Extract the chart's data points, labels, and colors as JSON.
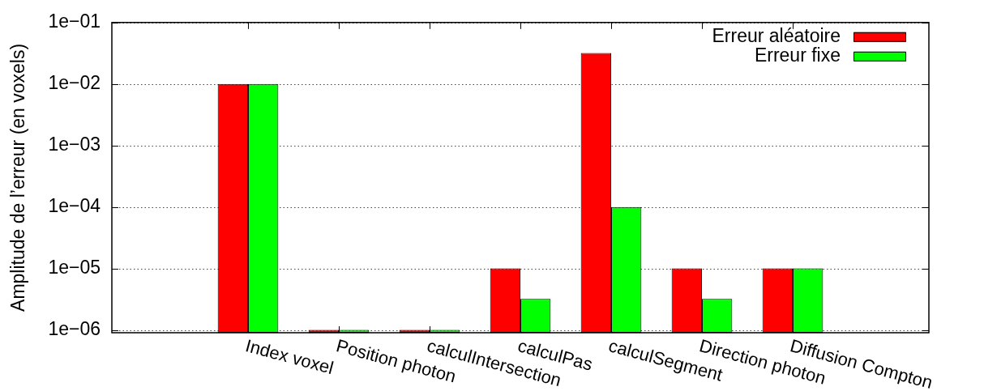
{
  "chart_data": {
    "type": "bar",
    "ylabel": "Amplitude de l’erreur (en voxels)",
    "categories": [
      "Index voxel",
      "Position photon",
      "calculIntersection",
      "calculPas",
      "calculSegment",
      "Direction photon",
      "Diffusion Compton"
    ],
    "series": [
      {
        "name": "Erreur aléatoire",
        "color": "#ff0000",
        "values": [
          0.01,
          1e-06,
          1e-06,
          1e-05,
          0.032,
          1e-05,
          1e-05
        ]
      },
      {
        "name": "Erreur fixe",
        "color": "#00ff00",
        "values": [
          0.01,
          1e-06,
          1e-06,
          3.2e-06,
          0.0001,
          3.2e-06,
          1e-05
        ]
      }
    ],
    "log": true,
    "ylim": [
      9e-07,
      0.1
    ],
    "yticks": [
      {
        "value": 1e-06,
        "label": "1e−06"
      },
      {
        "value": 1e-05,
        "label": "1e−05"
      },
      {
        "value": 0.0001,
        "label": "1e−04"
      },
      {
        "value": 0.001,
        "label": "1e−03"
      },
      {
        "value": 0.01,
        "label": "1e−02"
      },
      {
        "value": 0.1,
        "label": "1e−01"
      }
    ],
    "grid": "y",
    "legend": "top right"
  }
}
